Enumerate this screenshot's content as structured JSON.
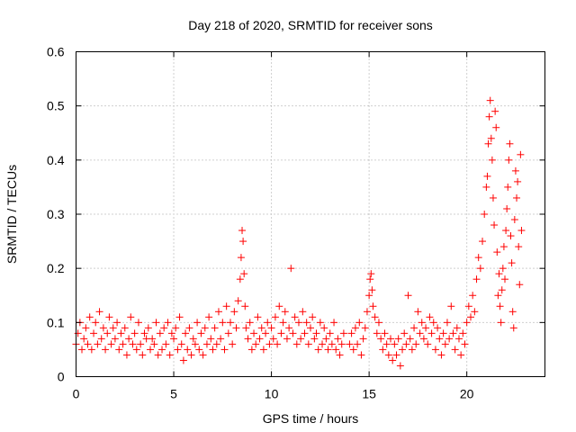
{
  "chart_data": {
    "type": "scatter",
    "title": "Day 218 of 2020, SRMTID for receiver sons",
    "xlabel": "GPS time / hours",
    "ylabel": "SRMTID / TECUs",
    "xlim": [
      0,
      24
    ],
    "ylim": [
      0,
      0.6
    ],
    "xticks": [
      0,
      5,
      10,
      15,
      20
    ],
    "yticks": [
      0,
      0.1,
      0.2,
      0.3,
      0.4,
      0.5,
      0.6
    ],
    "grid": true,
    "marker": "+",
    "color": "#ff0000",
    "series": [
      {
        "name": "SRMTID",
        "points": [
          [
            0.0,
            0.06
          ],
          [
            0.1,
            0.08
          ],
          [
            0.2,
            0.1
          ],
          [
            0.3,
            0.05
          ],
          [
            0.4,
            0.07
          ],
          [
            0.5,
            0.09
          ],
          [
            0.6,
            0.06
          ],
          [
            0.7,
            0.11
          ],
          [
            0.8,
            0.05
          ],
          [
            0.9,
            0.08
          ],
          [
            1.0,
            0.1
          ],
          [
            1.1,
            0.06
          ],
          [
            1.2,
            0.12
          ],
          [
            1.3,
            0.07
          ],
          [
            1.4,
            0.09
          ],
          [
            1.5,
            0.05
          ],
          [
            1.6,
            0.08
          ],
          [
            1.7,
            0.11
          ],
          [
            1.8,
            0.06
          ],
          [
            1.9,
            0.09
          ],
          [
            2.0,
            0.07
          ],
          [
            2.1,
            0.1
          ],
          [
            2.2,
            0.05
          ],
          [
            2.3,
            0.08
          ],
          [
            2.4,
            0.06
          ],
          [
            2.5,
            0.09
          ],
          [
            2.6,
            0.04
          ],
          [
            2.7,
            0.07
          ],
          [
            2.8,
            0.11
          ],
          [
            2.9,
            0.06
          ],
          [
            3.0,
            0.08
          ],
          [
            3.1,
            0.05
          ],
          [
            3.2,
            0.1
          ],
          [
            3.3,
            0.06
          ],
          [
            3.4,
            0.04
          ],
          [
            3.5,
            0.08
          ],
          [
            3.6,
            0.07
          ],
          [
            3.7,
            0.09
          ],
          [
            3.8,
            0.05
          ],
          [
            3.9,
            0.07
          ],
          [
            4.0,
            0.06
          ],
          [
            4.1,
            0.1
          ],
          [
            4.2,
            0.04
          ],
          [
            4.3,
            0.08
          ],
          [
            4.4,
            0.05
          ],
          [
            4.5,
            0.09
          ],
          [
            4.6,
            0.06
          ],
          [
            4.7,
            0.1
          ],
          [
            4.8,
            0.04
          ],
          [
            4.9,
            0.08
          ],
          [
            5.0,
            0.07
          ],
          [
            5.1,
            0.09
          ],
          [
            5.2,
            0.05
          ],
          [
            5.3,
            0.11
          ],
          [
            5.4,
            0.06
          ],
          [
            5.5,
            0.03
          ],
          [
            5.6,
            0.08
          ],
          [
            5.7,
            0.05
          ],
          [
            5.8,
            0.09
          ],
          [
            5.9,
            0.04
          ],
          [
            6.0,
            0.07
          ],
          [
            6.1,
            0.06
          ],
          [
            6.2,
            0.1
          ],
          [
            6.3,
            0.05
          ],
          [
            6.4,
            0.08
          ],
          [
            6.5,
            0.04
          ],
          [
            6.6,
            0.09
          ],
          [
            6.7,
            0.06
          ],
          [
            6.8,
            0.11
          ],
          [
            6.9,
            0.07
          ],
          [
            7.0,
            0.05
          ],
          [
            7.1,
            0.09
          ],
          [
            7.2,
            0.06
          ],
          [
            7.3,
            0.12
          ],
          [
            7.4,
            0.07
          ],
          [
            7.5,
            0.1
          ],
          [
            7.6,
            0.05
          ],
          [
            7.7,
            0.13
          ],
          [
            7.8,
            0.08
          ],
          [
            7.9,
            0.1
          ],
          [
            8.0,
            0.06
          ],
          [
            8.1,
            0.12
          ],
          [
            8.2,
            0.09
          ],
          [
            8.3,
            0.14
          ],
          [
            8.4,
            0.18
          ],
          [
            8.45,
            0.22
          ],
          [
            8.5,
            0.27
          ],
          [
            8.55,
            0.25
          ],
          [
            8.6,
            0.19
          ],
          [
            8.65,
            0.13
          ],
          [
            8.7,
            0.09
          ],
          [
            8.8,
            0.07
          ],
          [
            8.9,
            0.1
          ],
          [
            9.0,
            0.05
          ],
          [
            9.1,
            0.08
          ],
          [
            9.2,
            0.06
          ],
          [
            9.3,
            0.11
          ],
          [
            9.4,
            0.07
          ],
          [
            9.5,
            0.09
          ],
          [
            9.6,
            0.05
          ],
          [
            9.7,
            0.08
          ],
          [
            9.8,
            0.1
          ],
          [
            9.9,
            0.06
          ],
          [
            10.0,
            0.09
          ],
          [
            10.1,
            0.07
          ],
          [
            10.2,
            0.11
          ],
          [
            10.3,
            0.06
          ],
          [
            10.4,
            0.13
          ],
          [
            10.5,
            0.08
          ],
          [
            10.6,
            0.1
          ],
          [
            10.7,
            0.12
          ],
          [
            10.8,
            0.07
          ],
          [
            10.9,
            0.09
          ],
          [
            11.0,
            0.2
          ],
          [
            11.1,
            0.08
          ],
          [
            11.2,
            0.11
          ],
          [
            11.3,
            0.06
          ],
          [
            11.4,
            0.1
          ],
          [
            11.5,
            0.07
          ],
          [
            11.6,
            0.12
          ],
          [
            11.7,
            0.08
          ],
          [
            11.8,
            0.1
          ],
          [
            11.9,
            0.06
          ],
          [
            12.0,
            0.09
          ],
          [
            12.1,
            0.11
          ],
          [
            12.2,
            0.07
          ],
          [
            12.3,
            0.08
          ],
          [
            12.4,
            0.05
          ],
          [
            12.5,
            0.1
          ],
          [
            12.6,
            0.06
          ],
          [
            12.7,
            0.09
          ],
          [
            12.8,
            0.07
          ],
          [
            12.9,
            0.05
          ],
          [
            13.0,
            0.08
          ],
          [
            13.1,
            0.06
          ],
          [
            13.2,
            0.1
          ],
          [
            13.3,
            0.05
          ],
          [
            13.4,
            0.07
          ],
          [
            13.5,
            0.04
          ],
          [
            13.6,
            0.06
          ],
          [
            13.7,
            0.08
          ],
          [
            14.0,
            0.06
          ],
          [
            14.1,
            0.08
          ],
          [
            14.2,
            0.05
          ],
          [
            14.3,
            0.09
          ],
          [
            14.4,
            0.06
          ],
          [
            14.5,
            0.1
          ],
          [
            14.6,
            0.04
          ],
          [
            14.7,
            0.07
          ],
          [
            14.8,
            0.09
          ],
          [
            14.9,
            0.12
          ],
          [
            15.0,
            0.15
          ],
          [
            15.05,
            0.18
          ],
          [
            15.1,
            0.19
          ],
          [
            15.15,
            0.16
          ],
          [
            15.2,
            0.13
          ],
          [
            15.3,
            0.11
          ],
          [
            15.4,
            0.08
          ],
          [
            15.5,
            0.1
          ],
          [
            15.6,
            0.07
          ],
          [
            15.7,
            0.05
          ],
          [
            15.8,
            0.08
          ],
          [
            15.9,
            0.06
          ],
          [
            16.0,
            0.04
          ],
          [
            16.1,
            0.07
          ],
          [
            16.2,
            0.03
          ],
          [
            16.3,
            0.06
          ],
          [
            16.4,
            0.04
          ],
          [
            16.5,
            0.07
          ],
          [
            16.6,
            0.02
          ],
          [
            16.7,
            0.05
          ],
          [
            16.8,
            0.08
          ],
          [
            16.9,
            0.06
          ],
          [
            17.0,
            0.15
          ],
          [
            17.1,
            0.07
          ],
          [
            17.2,
            0.05
          ],
          [
            17.3,
            0.09
          ],
          [
            17.4,
            0.06
          ],
          [
            17.5,
            0.12
          ],
          [
            17.6,
            0.08
          ],
          [
            17.7,
            0.1
          ],
          [
            17.8,
            0.07
          ],
          [
            17.9,
            0.09
          ],
          [
            18.0,
            0.06
          ],
          [
            18.1,
            0.11
          ],
          [
            18.2,
            0.08
          ],
          [
            18.3,
            0.1
          ],
          [
            18.4,
            0.05
          ],
          [
            18.5,
            0.09
          ],
          [
            18.6,
            0.07
          ],
          [
            18.7,
            0.04
          ],
          [
            18.8,
            0.08
          ],
          [
            18.9,
            0.06
          ],
          [
            19.0,
            0.1
          ],
          [
            19.1,
            0.07
          ],
          [
            19.2,
            0.13
          ],
          [
            19.3,
            0.08
          ],
          [
            19.4,
            0.05
          ],
          [
            19.5,
            0.09
          ],
          [
            19.6,
            0.07
          ],
          [
            19.7,
            0.04
          ],
          [
            19.8,
            0.08
          ],
          [
            19.9,
            0.06
          ],
          [
            20.0,
            0.1
          ],
          [
            20.1,
            0.13
          ],
          [
            20.2,
            0.11
          ],
          [
            20.3,
            0.15
          ],
          [
            20.4,
            0.12
          ],
          [
            20.5,
            0.18
          ],
          [
            20.6,
            0.22
          ],
          [
            20.7,
            0.2
          ],
          [
            20.8,
            0.25
          ],
          [
            20.9,
            0.3
          ],
          [
            21.0,
            0.35
          ],
          [
            21.05,
            0.37
          ],
          [
            21.1,
            0.43
          ],
          [
            21.15,
            0.48
          ],
          [
            21.2,
            0.51
          ],
          [
            21.25,
            0.44
          ],
          [
            21.3,
            0.4
          ],
          [
            21.35,
            0.33
          ],
          [
            21.4,
            0.28
          ],
          [
            21.45,
            0.49
          ],
          [
            21.5,
            0.46
          ],
          [
            21.55,
            0.23
          ],
          [
            21.6,
            0.15
          ],
          [
            21.65,
            0.19
          ],
          [
            21.7,
            0.13
          ],
          [
            21.75,
            0.1
          ],
          [
            21.8,
            0.16
          ],
          [
            21.85,
            0.2
          ],
          [
            21.9,
            0.24
          ],
          [
            21.95,
            0.18
          ],
          [
            22.0,
            0.27
          ],
          [
            22.05,
            0.31
          ],
          [
            22.1,
            0.35
          ],
          [
            22.15,
            0.4
          ],
          [
            22.2,
            0.43
          ],
          [
            22.25,
            0.26
          ],
          [
            22.3,
            0.21
          ],
          [
            22.35,
            0.12
          ],
          [
            22.4,
            0.09
          ],
          [
            22.45,
            0.29
          ],
          [
            22.5,
            0.38
          ],
          [
            22.55,
            0.33
          ],
          [
            22.6,
            0.36
          ],
          [
            22.65,
            0.24
          ],
          [
            22.7,
            0.17
          ],
          [
            22.75,
            0.41
          ],
          [
            22.8,
            0.27
          ]
        ]
      }
    ]
  }
}
